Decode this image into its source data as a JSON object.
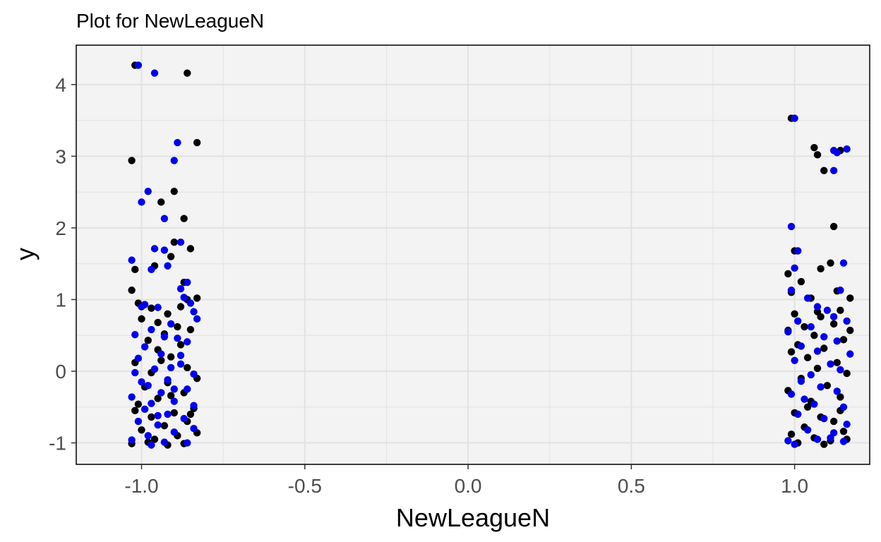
{
  "chart_data": {
    "type": "scatter",
    "title": "Plot for  NewLeagueN",
    "xlabel": "NewLeagueN",
    "ylabel": "y",
    "xlim": [
      -1.2,
      1.23
    ],
    "ylim": [
      -1.3,
      4.55
    ],
    "x_ticks": [
      -1.0,
      -0.5,
      0.0,
      0.5,
      1.0
    ],
    "x_tick_labels": [
      "-1.0",
      "-0.5",
      "0.0",
      "0.5",
      "1.0"
    ],
    "y_ticks": [
      -1,
      0,
      1,
      2,
      3,
      4
    ],
    "y_tick_labels": [
      "-1",
      "0",
      "1",
      "2",
      "3",
      "4"
    ],
    "grid": true,
    "legend": "none",
    "colors": {
      "panel_bg": "#f3f3f3",
      "grid": "#e2e2e2",
      "panel_border": "#000000",
      "black_series": "#000000",
      "blue_series": "#0000ee"
    },
    "series": [
      {
        "name": "black",
        "color": "#000000",
        "points": [
          [
            -1.02,
            4.27
          ],
          [
            -0.86,
            4.16
          ],
          [
            -1.03,
            2.94
          ],
          [
            -0.83,
            3.19
          ],
          [
            -0.9,
            2.51
          ],
          [
            -0.94,
            2.36
          ],
          [
            -0.87,
            2.13
          ],
          [
            -0.9,
            1.8
          ],
          [
            -0.85,
            1.71
          ],
          [
            -0.91,
            1.6
          ],
          [
            -0.96,
            1.47
          ],
          [
            -1.02,
            1.42
          ],
          [
            -0.87,
            1.24
          ],
          [
            -1.03,
            1.13
          ],
          [
            -0.83,
            1.02
          ],
          [
            -0.86,
            1.0
          ],
          [
            -0.88,
            0.9
          ],
          [
            -1.01,
            0.95
          ],
          [
            -0.97,
            0.88
          ],
          [
            -0.92,
            0.8
          ],
          [
            -1.0,
            0.73
          ],
          [
            -0.95,
            0.68
          ],
          [
            -0.85,
            0.58
          ],
          [
            -0.93,
            0.52
          ],
          [
            -0.98,
            0.43
          ],
          [
            -0.88,
            0.37
          ],
          [
            -0.95,
            0.3
          ],
          [
            -0.91,
            0.2
          ],
          [
            -1.02,
            0.12
          ],
          [
            -0.86,
            0.05
          ],
          [
            -0.97,
            -0.02
          ],
          [
            -0.83,
            -0.1
          ],
          [
            -0.92,
            -0.16
          ],
          [
            -0.99,
            -0.22
          ],
          [
            -0.87,
            -0.3
          ],
          [
            -0.95,
            -0.38
          ],
          [
            -1.01,
            -0.46
          ],
          [
            -0.84,
            -0.52
          ],
          [
            -0.9,
            -0.58
          ],
          [
            -0.97,
            -0.64
          ],
          [
            -0.86,
            -0.7
          ],
          [
            -0.93,
            -0.76
          ],
          [
            -1.0,
            -0.82
          ],
          [
            -0.83,
            -0.86
          ],
          [
            -0.89,
            -0.9
          ],
          [
            -0.96,
            -0.95
          ],
          [
            -0.87,
            -1.01
          ],
          [
            -0.92,
            -1.03
          ],
          [
            -1.03,
            -1.01
          ],
          [
            -0.98,
            -0.99
          ],
          [
            -0.85,
            -0.6
          ],
          [
            -0.91,
            -0.34
          ],
          [
            -1.02,
            -0.55
          ],
          [
            -0.89,
            0.62
          ],
          [
            -0.94,
            0.15
          ],
          [
            0.99,
            3.53
          ],
          [
            1.06,
            3.12
          ],
          [
            1.07,
            3.02
          ],
          [
            1.14,
            3.08
          ],
          [
            1.09,
            2.8
          ],
          [
            1.12,
            2.02
          ],
          [
            1.0,
            1.68
          ],
          [
            0.98,
            1.36
          ],
          [
            1.08,
            1.43
          ],
          [
            1.11,
            1.51
          ],
          [
            0.99,
            1.1
          ],
          [
            1.05,
            1.02
          ],
          [
            1.13,
            1.12
          ],
          [
            1.0,
            0.8
          ],
          [
            1.14,
            0.85
          ],
          [
            1.17,
            1.02
          ],
          [
            1.08,
            0.76
          ],
          [
            1.03,
            0.62
          ],
          [
            1.12,
            0.66
          ],
          [
            0.98,
            0.57
          ],
          [
            1.06,
            0.5
          ],
          [
            1.15,
            0.44
          ],
          [
            1.01,
            0.37
          ],
          [
            1.09,
            0.32
          ],
          [
            0.99,
            0.27
          ],
          [
            1.04,
            0.19
          ],
          [
            1.13,
            0.12
          ],
          [
            1.07,
            0.04
          ],
          [
            1.16,
            -0.03
          ],
          [
            1.02,
            -0.1
          ],
          [
            0.98,
            -0.27
          ],
          [
            1.1,
            -0.2
          ],
          [
            1.05,
            -0.42
          ],
          [
            1.14,
            -0.36
          ],
          [
            1.0,
            -0.58
          ],
          [
            1.08,
            -0.64
          ],
          [
            1.12,
            -0.7
          ],
          [
            1.03,
            -0.78
          ],
          [
            1.15,
            -0.84
          ],
          [
            0.99,
            -0.88
          ],
          [
            1.06,
            -0.93
          ],
          [
            1.11,
            -0.97
          ],
          [
            1.01,
            -1.0
          ],
          [
            1.09,
            -1.02
          ],
          [
            1.16,
            -0.95
          ],
          [
            1.14,
            -0.55
          ],
          [
            1.04,
            -0.5
          ],
          [
            1.07,
            0.83
          ],
          [
            1.17,
            0.57
          ],
          [
            1.02,
            1.25
          ]
        ]
      },
      {
        "name": "blue",
        "color": "#0000ee",
        "points": [
          [
            -1.01,
            4.27
          ],
          [
            -0.96,
            4.16
          ],
          [
            -0.89,
            3.19
          ],
          [
            -0.9,
            2.94
          ],
          [
            -0.98,
            2.51
          ],
          [
            -1.0,
            2.36
          ],
          [
            -0.93,
            2.13
          ],
          [
            -0.88,
            1.8
          ],
          [
            -0.96,
            1.71
          ],
          [
            -0.93,
            1.69
          ],
          [
            -1.03,
            1.55
          ],
          [
            -0.92,
            1.47
          ],
          [
            -0.97,
            1.42
          ],
          [
            -0.86,
            1.24
          ],
          [
            -0.88,
            1.15
          ],
          [
            -0.87,
            1.03
          ],
          [
            -0.99,
            0.93
          ],
          [
            -1.0,
            0.9
          ],
          [
            -0.84,
            0.83
          ],
          [
            -0.95,
            0.89
          ],
          [
            -0.83,
            0.73
          ],
          [
            -0.91,
            0.66
          ],
          [
            -0.97,
            0.58
          ],
          [
            -1.02,
            0.51
          ],
          [
            -0.89,
            0.46
          ],
          [
            -0.99,
            0.34
          ],
          [
            -0.86,
            0.41
          ],
          [
            -0.94,
            0.24
          ],
          [
            -1.01,
            0.18
          ],
          [
            -0.88,
            0.1
          ],
          [
            -0.96,
            0.03
          ],
          [
            -0.84,
            -0.04
          ],
          [
            -1.02,
            -0.02
          ],
          [
            -0.92,
            -0.12
          ],
          [
            -0.98,
            -0.2
          ],
          [
            -0.86,
            -0.25
          ],
          [
            -0.94,
            -0.3
          ],
          [
            -1.03,
            -0.36
          ],
          [
            -0.9,
            -0.42
          ],
          [
            -0.84,
            -0.48
          ],
          [
            -0.99,
            -0.53
          ],
          [
            -0.92,
            -0.6
          ],
          [
            -0.87,
            -0.66
          ],
          [
            -1.01,
            -0.7
          ],
          [
            -0.95,
            -0.75
          ],
          [
            -0.84,
            -0.8
          ],
          [
            -0.9,
            -0.85
          ],
          [
            -0.98,
            -0.9
          ],
          [
            -1.03,
            -0.96
          ],
          [
            -0.93,
            -0.99
          ],
          [
            -0.86,
            -1.0
          ],
          [
            -0.97,
            -1.03
          ],
          [
            -0.9,
            -0.25
          ],
          [
            -0.95,
            -0.62
          ],
          [
            -1.0,
            -0.15
          ],
          [
            -0.88,
            0.22
          ],
          [
            -0.93,
            0.48
          ],
          [
            -0.85,
            0.95
          ],
          [
            -0.91,
            0.05
          ],
          [
            -0.97,
            -0.45
          ],
          [
            1.0,
            3.53
          ],
          [
            1.12,
            3.08
          ],
          [
            1.13,
            3.05
          ],
          [
            1.16,
            3.1
          ],
          [
            1.12,
            2.8
          ],
          [
            0.99,
            2.02
          ],
          [
            1.01,
            1.68
          ],
          [
            1.0,
            1.44
          ],
          [
            1.15,
            1.51
          ],
          [
            1.14,
            1.13
          ],
          [
            0.99,
            1.13
          ],
          [
            1.04,
            1.02
          ],
          [
            1.07,
            0.9
          ],
          [
            1.1,
            0.85
          ],
          [
            1.12,
            0.76
          ],
          [
            1.01,
            0.7
          ],
          [
            1.16,
            0.7
          ],
          [
            1.05,
            0.62
          ],
          [
            0.98,
            0.55
          ],
          [
            1.09,
            0.48
          ],
          [
            1.13,
            0.42
          ],
          [
            1.02,
            0.35
          ],
          [
            1.07,
            0.28
          ],
          [
            1.17,
            0.24
          ],
          [
            1.0,
            0.15
          ],
          [
            1.11,
            0.1
          ],
          [
            1.05,
            -0.05
          ],
          [
            1.14,
            0.02
          ],
          [
            1.02,
            -0.14
          ],
          [
            1.08,
            -0.22
          ],
          [
            1.13,
            -0.28
          ],
          [
            0.99,
            -0.32
          ],
          [
            1.06,
            -0.46
          ],
          [
            1.15,
            -0.5
          ],
          [
            1.01,
            -0.6
          ],
          [
            1.09,
            -0.66
          ],
          [
            1.16,
            -0.74
          ],
          [
            1.04,
            -0.82
          ],
          [
            1.12,
            -0.86
          ],
          [
            0.98,
            -0.97
          ],
          [
            1.07,
            -0.95
          ],
          [
            1.15,
            -0.98
          ],
          [
            1.0,
            -1.02
          ],
          [
            1.11,
            -0.93
          ],
          [
            1.03,
            -0.39
          ]
        ]
      }
    ]
  }
}
